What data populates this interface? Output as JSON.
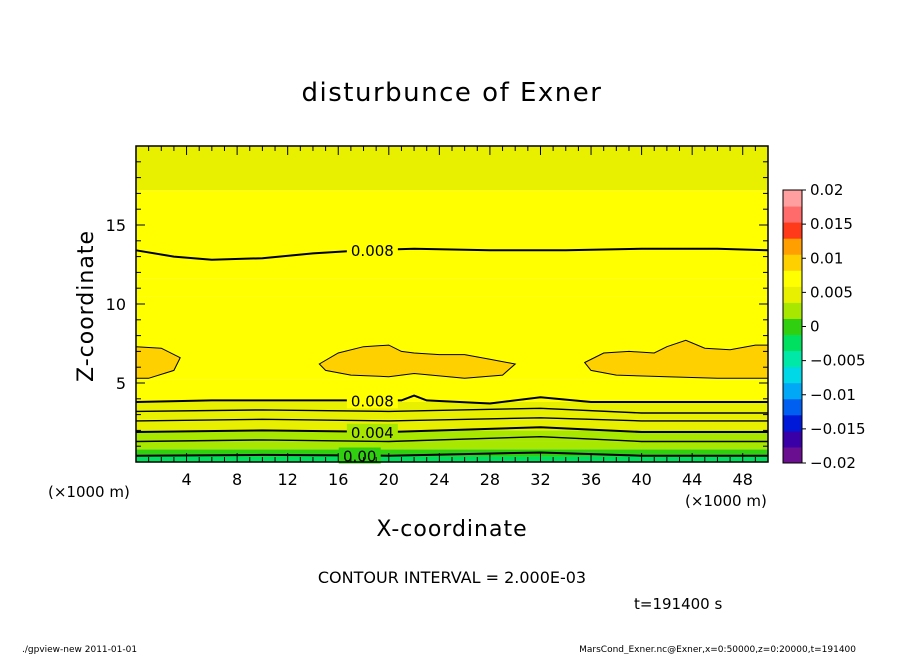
{
  "chart_data": {
    "type": "heatmap",
    "title": "disturbunce of Exner",
    "xlabel": "X-coordinate",
    "ylabel": "Z-coordinate",
    "x_unit": "(×1000 m)",
    "z_unit": "(×1000 m)",
    "xlim": [
      0,
      50
    ],
    "ylim": [
      0,
      20
    ],
    "x_ticks": [
      4,
      8,
      12,
      16,
      20,
      24,
      28,
      32,
      36,
      40,
      44,
      48
    ],
    "y_ticks": [
      5,
      10,
      15
    ],
    "levels": [
      -0.02,
      -0.0175,
      -0.015,
      -0.0125,
      -0.01,
      -0.0075,
      -0.005,
      -0.0025,
      0,
      0.0025,
      0.005,
      0.0075,
      0.01,
      0.0125,
      0.015,
      0.0175,
      0.02
    ],
    "colorbar_colors": [
      "#6a0f8f",
      "#3a00a8",
      "#0018d8",
      "#005ff0",
      "#00a8f5",
      "#00d8e8",
      "#00e8a8",
      "#00e060",
      "#30d010",
      "#a8e800",
      "#e8f000",
      "#ffff00",
      "#ffd000",
      "#ffa000",
      "#ff3a1a",
      "#ff6a6a",
      "#ff9f9f"
    ],
    "colorbar_labels": [
      "0.02",
      "0.015",
      "0.01",
      "0.005",
      "0",
      "−0.005",
      "−0.01",
      "−0.015",
      "−0.02"
    ],
    "bands": [
      {
        "z0": 0,
        "z1": 0.35,
        "value": -0.0025
      },
      {
        "z0": 0.35,
        "z1": 0.8,
        "value": 0.0
      },
      {
        "z0": 0.8,
        "z1": 1.3,
        "value": 0.0025
      },
      {
        "z0": 1.3,
        "z1": 2.0,
        "value": 0.0045
      },
      {
        "z0": 2.0,
        "z1": 2.7,
        "value": 0.0055
      },
      {
        "z0": 2.7,
        "z1": 3.8,
        "value": 0.0065
      },
      {
        "z0": 3.8,
        "z1": 5.2,
        "value": 0.0085
      },
      {
        "z0": 5.2,
        "z1": 10.5,
        "value": 0.0095
      },
      {
        "z0": 10.5,
        "z1": 11.6,
        "value": 0.0085
      },
      {
        "z0": 11.6,
        "z1": 17.2,
        "value": 0.0075
      },
      {
        "z0": 17.2,
        "z1": 20.0,
        "value": 0.0055
      }
    ],
    "contour_lines": [
      {
        "label": "0.008",
        "label_x": 18.7,
        "points": [
          [
            0,
            13.4
          ],
          [
            3,
            13.0
          ],
          [
            6,
            12.8
          ],
          [
            10,
            12.9
          ],
          [
            14,
            13.2
          ],
          [
            18,
            13.4
          ],
          [
            22,
            13.5
          ],
          [
            28,
            13.4
          ],
          [
            34,
            13.4
          ],
          [
            40,
            13.5
          ],
          [
            46,
            13.5
          ],
          [
            50,
            13.4
          ]
        ]
      },
      {
        "label": "0.008",
        "label_x": 18.7,
        "points": [
          [
            0,
            3.8
          ],
          [
            6,
            3.9
          ],
          [
            12,
            3.9
          ],
          [
            18,
            3.9
          ],
          [
            21,
            3.9
          ],
          [
            22,
            4.2
          ],
          [
            23,
            3.9
          ],
          [
            28,
            3.7
          ],
          [
            32,
            4.1
          ],
          [
            36,
            3.8
          ],
          [
            42,
            3.8
          ],
          [
            50,
            3.8
          ]
        ]
      },
      {
        "label": "",
        "label_x": 0,
        "points": [
          [
            0,
            3.2
          ],
          [
            10,
            3.3
          ],
          [
            20,
            3.2
          ],
          [
            32,
            3.4
          ],
          [
            40,
            3.1
          ],
          [
            50,
            3.1
          ]
        ]
      },
      {
        "label": "",
        "label_x": 0,
        "points": [
          [
            0,
            2.6
          ],
          [
            10,
            2.7
          ],
          [
            20,
            2.6
          ],
          [
            32,
            2.8
          ],
          [
            40,
            2.6
          ],
          [
            50,
            2.6
          ]
        ]
      },
      {
        "label": "0.004",
        "label_x": 18.7,
        "points": [
          [
            0,
            1.9
          ],
          [
            10,
            2.0
          ],
          [
            20,
            1.9
          ],
          [
            32,
            2.2
          ],
          [
            40,
            1.9
          ],
          [
            50,
            1.9
          ]
        ]
      },
      {
        "label": "",
        "label_x": 0,
        "points": [
          [
            0,
            1.3
          ],
          [
            10,
            1.4
          ],
          [
            20,
            1.3
          ],
          [
            32,
            1.6
          ],
          [
            40,
            1.3
          ],
          [
            50,
            1.3
          ]
        ]
      },
      {
        "label": "0.00",
        "label_x": 17.7,
        "points": [
          [
            0,
            0.4
          ],
          [
            10,
            0.45
          ],
          [
            20,
            0.4
          ],
          [
            32,
            0.6
          ],
          [
            40,
            0.4
          ],
          [
            50,
            0.4
          ]
        ]
      }
    ],
    "closed_contours": [
      {
        "value": 0.01,
        "points": [
          [
            0,
            7.3
          ],
          [
            2,
            7.2
          ],
          [
            3.5,
            6.6
          ],
          [
            3,
            5.8
          ],
          [
            1,
            5.3
          ],
          [
            0,
            5.3
          ]
        ]
      },
      {
        "value": 0.01,
        "points": [
          [
            14.5,
            6.2
          ],
          [
            16,
            6.9
          ],
          [
            18,
            7.3
          ],
          [
            20,
            7.4
          ],
          [
            21,
            7.0
          ],
          [
            22,
            6.9
          ],
          [
            24,
            6.8
          ],
          [
            26,
            6.8
          ],
          [
            28,
            6.5
          ],
          [
            30,
            6.2
          ],
          [
            29,
            5.5
          ],
          [
            26,
            5.3
          ],
          [
            22,
            5.6
          ],
          [
            20,
            5.4
          ],
          [
            17,
            5.5
          ],
          [
            15,
            5.8
          ]
        ]
      },
      {
        "value": 0.01,
        "points": [
          [
            35.5,
            6.3
          ],
          [
            37,
            6.9
          ],
          [
            39,
            7.0
          ],
          [
            41,
            6.9
          ],
          [
            42,
            7.3
          ],
          [
            43.5,
            7.7
          ],
          [
            45,
            7.2
          ],
          [
            47,
            7.1
          ],
          [
            49,
            7.4
          ],
          [
            50,
            7.4
          ],
          [
            50,
            5.3
          ],
          [
            46,
            5.3
          ],
          [
            42,
            5.4
          ],
          [
            38,
            5.5
          ],
          [
            36,
            5.8
          ]
        ]
      }
    ]
  },
  "contour_interval": "CONTOUR INTERVAL = 2.000E-03",
  "time_label": "t=191400 s",
  "footer_left": "./gpview-new   2011-01-01",
  "footer_right": "MarsCond_Exner.nc@Exner,x=0:50000,z=0:20000,t=191400"
}
